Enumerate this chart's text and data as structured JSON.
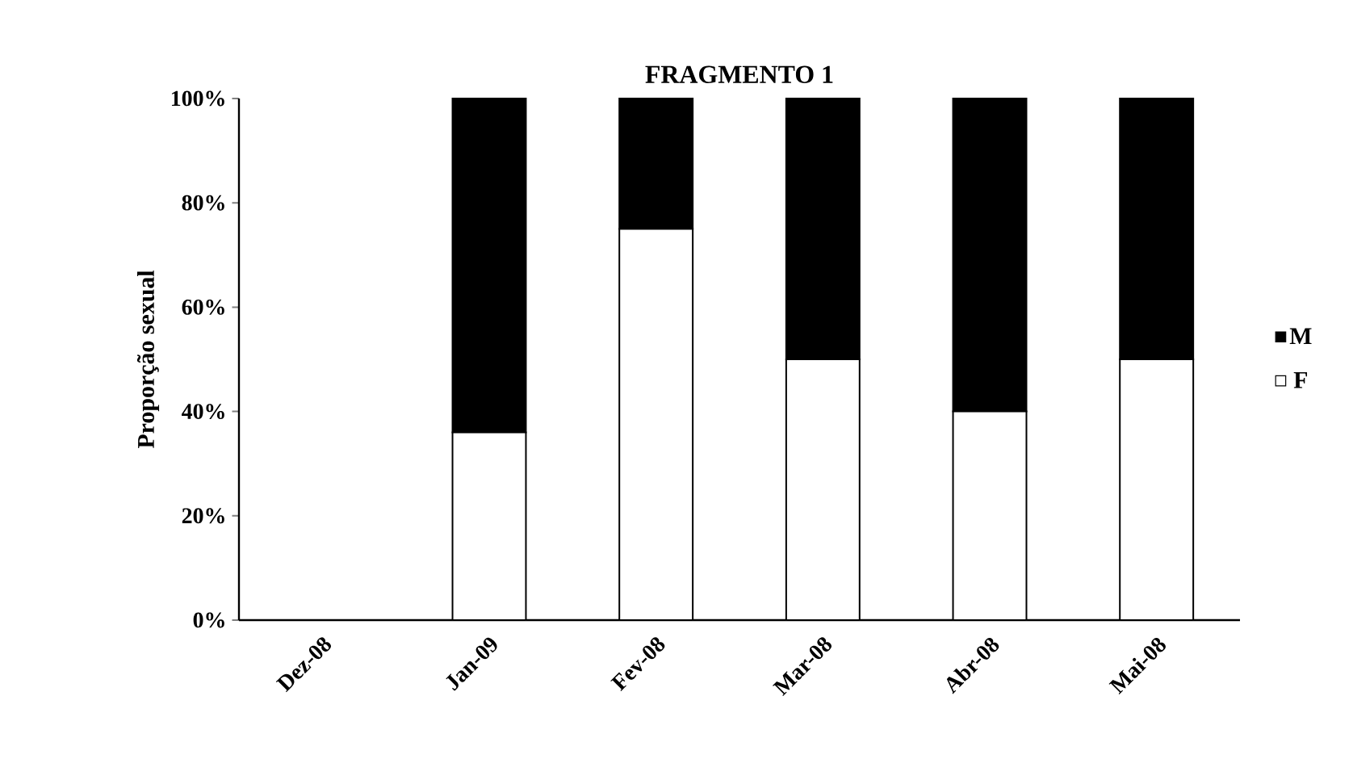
{
  "chart_data": {
    "type": "bar",
    "stacked": true,
    "title": "FRAGMENTO 1",
    "ylabel": "Proporção sexual",
    "categories": [
      "Dez-08",
      "Jan-09",
      "Fev-08",
      "Mar-08",
      "Abr-08",
      "Mai-08"
    ],
    "series": [
      {
        "name": "F",
        "color": "#ffffff",
        "values": [
          null,
          36,
          75,
          50,
          40,
          50
        ]
      },
      {
        "name": "M",
        "color": "#000000",
        "values": [
          null,
          64,
          25,
          50,
          60,
          50
        ]
      }
    ],
    "ylim": [
      0,
      100
    ],
    "yticks": [
      {
        "value": 0,
        "label": "0%"
      },
      {
        "value": 20,
        "label": "20%"
      },
      {
        "value": 40,
        "label": "40%"
      },
      {
        "value": 60,
        "label": "60%"
      },
      {
        "value": 80,
        "label": "80%"
      },
      {
        "value": 100,
        "label": "100%"
      }
    ],
    "legend": "right",
    "grid": false
  }
}
